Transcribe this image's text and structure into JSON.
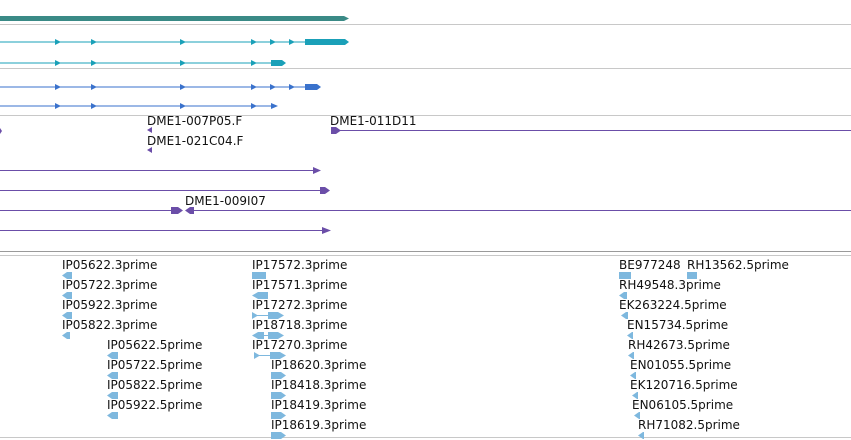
{
  "colors": {
    "gene_track": "#3a8a86",
    "transcript_a": "#1aa0b8",
    "transcript_b": "#3a72cc",
    "clone": "#6b4ea8",
    "est": "#7eb8de",
    "divider": "#c8c8c8",
    "text": "#111111"
  },
  "icons": {
    "transcript_exon": "arrowhead-right-icon",
    "clone_end": "arrowhead-icon",
    "est_block": "est-arrow-icon"
  },
  "clone_labels": [
    "DME1-007P05.F",
    "DME1-011D11",
    "DME1-021C04.F",
    "DME1-009I07"
  ],
  "est_col1": [
    "IP05622.3prime",
    "IP05722.3prime",
    "IP05922.3prime",
    "IP05822.3prime"
  ],
  "est_col2": [
    "IP05622.5prime",
    "IP05722.5prime",
    "IP05822.5prime",
    "IP05922.5prime"
  ],
  "est_col3": [
    "IP17572.3prime",
    "IP17571.3prime",
    "IP17272.3prime",
    "IP18718.3prime",
    "IP17270.3prime"
  ],
  "est_col4": [
    "IP18620.3prime",
    "IP18418.3prime",
    "IP18419.3prime",
    "IP18619.3prime"
  ],
  "est_col5": [
    "BE977248",
    "RH49548.3prime",
    "EK263224.5prime",
    "EN15734.5prime",
    "RH42673.5prime",
    "EN01055.5prime",
    "EK120716.5prime",
    "EN06105.5prime",
    "RH71082.5prime"
  ],
  "est_col6": [
    "RH13562.5prime"
  ]
}
